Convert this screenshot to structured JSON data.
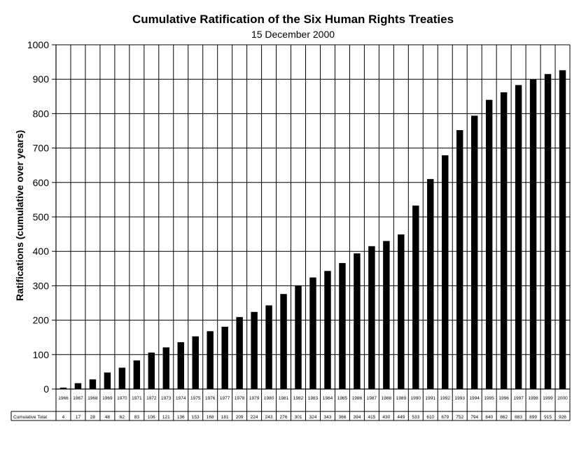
{
  "chart_data": {
    "type": "bar",
    "title": "Cumulative Ratification of the Six Human Rights Treaties",
    "subtitle": "15 December 2000",
    "ylabel": "Ratifications (cumulative over years)",
    "xlabel": "",
    "ylim": [
      0,
      1000
    ],
    "yticks": [
      0,
      100,
      200,
      300,
      400,
      500,
      600,
      700,
      800,
      900,
      1000
    ],
    "grid": true,
    "bar_color": "#000000",
    "table_row_label": "Cumulative Total",
    "categories": [
      "1966",
      "1967",
      "1968",
      "1969",
      "1970",
      "1971",
      "1972",
      "1973",
      "1974",
      "1975",
      "1976",
      "1977",
      "1978",
      "1979",
      "1980",
      "1981",
      "1982",
      "1983",
      "1984",
      "1985",
      "1986",
      "1987",
      "1988",
      "1989",
      "1990",
      "1991",
      "1992",
      "1993",
      "1994",
      "1995",
      "1996",
      "1997",
      "1998",
      "1999",
      "2000"
    ],
    "values": [
      4,
      17,
      28,
      48,
      62,
      83,
      106,
      121,
      136,
      153,
      168,
      181,
      209,
      224,
      243,
      276,
      301,
      324,
      343,
      366,
      394,
      415,
      430,
      449,
      533,
      610,
      679,
      752,
      794,
      840,
      862,
      883,
      899,
      915,
      926
    ]
  }
}
